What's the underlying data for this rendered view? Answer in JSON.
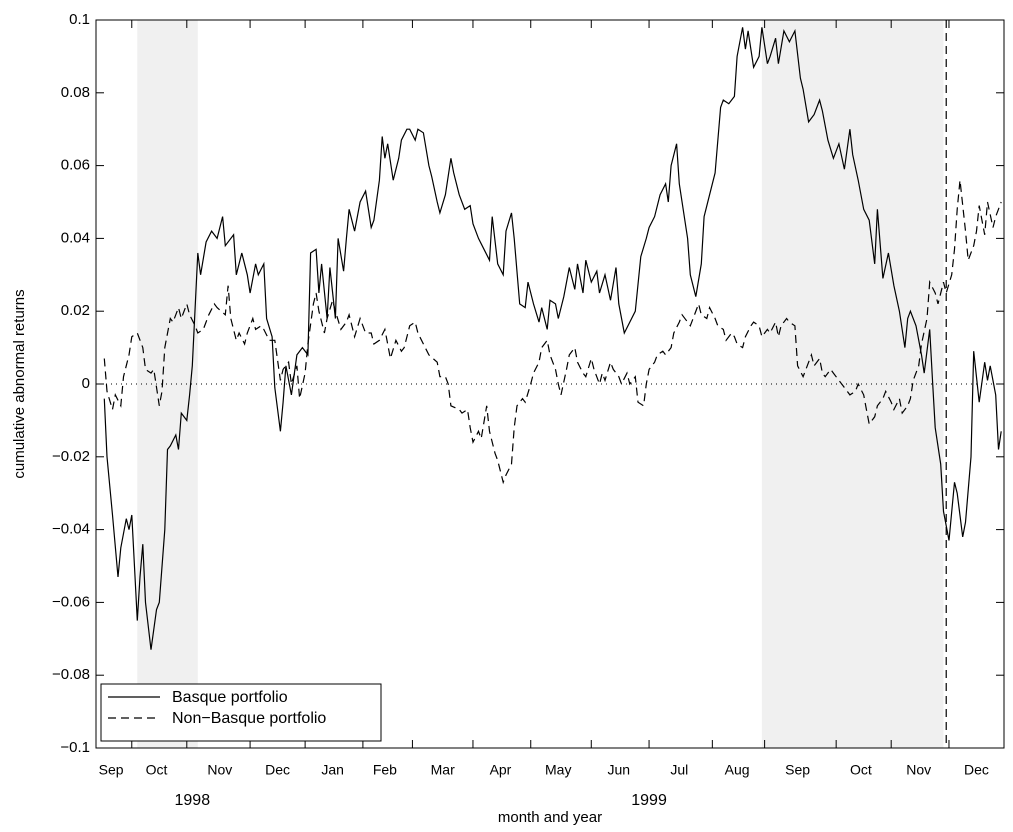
{
  "chart_data": {
    "type": "line",
    "xlabel": "month and year",
    "ylabel": "cumulative abnormal returns",
    "xlim": [
      0,
      330
    ],
    "ylim": [
      -0.1,
      0.1
    ],
    "yticks": [
      {
        "value": -0.1,
        "label": "−0.1"
      },
      {
        "value": -0.08,
        "label": "−0.08"
      },
      {
        "value": -0.06,
        "label": "−0.06"
      },
      {
        "value": -0.04,
        "label": "−0.04"
      },
      {
        "value": -0.02,
        "label": "−0.02"
      },
      0,
      0.02,
      0.04,
      0.06,
      0.08,
      0.1
    ],
    "xticks": [
      {
        "value": 5.5,
        "label": "Sep"
      },
      {
        "value": 22,
        "label": "Oct"
      },
      {
        "value": 45,
        "label": "Nov"
      },
      {
        "value": 66,
        "label": "Dec"
      },
      {
        "value": 86,
        "label": "Jan"
      },
      {
        "value": 105,
        "label": "Feb"
      },
      {
        "value": 126,
        "label": "Mar"
      },
      {
        "value": 147,
        "label": "Apr"
      },
      {
        "value": 168,
        "label": "May"
      },
      {
        "value": 190,
        "label": "Jun"
      },
      {
        "value": 212,
        "label": "Jul"
      },
      {
        "value": 233,
        "label": "Aug"
      },
      {
        "value": 255,
        "label": "Sep"
      },
      {
        "value": 278,
        "label": "Oct"
      },
      {
        "value": 299,
        "label": "Nov"
      },
      {
        "value": 320,
        "label": "Dec"
      }
    ],
    "month_boundaries": [
      13,
      33,
      56,
      76,
      97,
      115,
      137,
      158,
      180,
      201,
      224,
      243,
      269,
      289,
      310
    ],
    "year_labels": [
      {
        "text": "1998",
        "x": 35
      },
      {
        "text": "1999",
        "x": 201
      }
    ],
    "shaded_regions": [
      [
        15,
        37
      ],
      [
        242,
        308
      ]
    ],
    "shade_color": "#f0f0f0",
    "event_line": 309,
    "reference_line": 0,
    "legend": "lower left",
    "series": [
      {
        "name": "Basque portfolio",
        "color": "#000000",
        "style": "solid",
        "x": [
          3,
          4,
          6,
          8,
          9,
          11,
          12,
          13,
          15,
          16,
          17,
          18,
          20,
          22,
          23,
          25,
          26,
          27,
          29,
          30,
          31,
          33,
          34,
          35,
          37,
          38,
          40,
          42,
          44,
          46,
          47,
          50,
          51,
          53,
          55,
          56,
          58,
          59,
          61,
          62,
          64,
          65,
          67,
          68,
          69,
          71,
          73,
          75,
          77,
          78,
          80,
          81,
          82,
          84,
          85,
          87,
          88,
          90,
          91,
          92,
          94,
          96,
          98,
          100,
          101,
          103,
          104,
          105,
          106,
          108,
          110,
          111,
          113,
          114,
          116,
          117,
          119,
          121,
          122,
          124,
          125,
          127,
          129,
          130,
          132,
          134,
          136,
          137,
          139,
          141,
          143,
          144,
          146,
          148,
          149,
          151,
          152,
          154,
          156,
          157,
          159,
          161,
          162,
          164,
          165,
          167,
          168,
          170,
          172,
          174,
          175,
          177,
          178,
          180,
          182,
          183,
          185,
          187,
          189,
          190,
          192,
          194,
          196,
          198,
          200,
          201,
          203,
          205,
          207,
          208,
          209,
          211,
          212,
          215,
          216,
          218,
          220,
          221,
          223,
          225,
          227,
          228,
          230,
          232,
          233,
          235,
          236,
          237,
          239,
          241,
          242,
          244,
          245,
          247,
          248,
          250,
          252,
          254,
          256,
          257,
          259,
          261,
          263,
          264,
          266,
          268,
          270,
          272,
          274,
          275,
          277,
          279,
          281,
          283,
          284,
          286,
          288,
          290,
          292,
          294,
          295,
          296,
          298,
          300,
          301,
          303,
          304,
          305,
          307,
          308,
          310,
          312,
          313,
          315,
          316,
          318,
          319,
          321,
          323,
          324,
          325,
          327,
          328,
          329
        ],
        "values": [
          -0.004,
          -0.02,
          -0.036,
          -0.053,
          -0.045,
          -0.037,
          -0.04,
          -0.036,
          -0.065,
          -0.053,
          -0.044,
          -0.06,
          -0.073,
          -0.062,
          -0.06,
          -0.04,
          -0.018,
          -0.017,
          -0.014,
          -0.018,
          -0.008,
          -0.01,
          -0.003,
          0.005,
          0.036,
          0.03,
          0.039,
          0.042,
          0.04,
          0.046,
          0.038,
          0.041,
          0.03,
          0.036,
          0.03,
          0.025,
          0.033,
          0.03,
          0.033,
          0.018,
          0.013,
          -0.001,
          -0.013,
          -0.005,
          0.005,
          -0.003,
          0.008,
          0.01,
          0.008,
          0.036,
          0.037,
          0.025,
          0.033,
          0.018,
          0.032,
          0.018,
          0.04,
          0.031,
          0.04,
          0.048,
          0.042,
          0.05,
          0.053,
          0.043,
          0.045,
          0.056,
          0.068,
          0.062,
          0.066,
          0.056,
          0.062,
          0.067,
          0.07,
          0.07,
          0.067,
          0.07,
          0.069,
          0.06,
          0.057,
          0.05,
          0.047,
          0.052,
          0.062,
          0.058,
          0.052,
          0.048,
          0.049,
          0.044,
          0.04,
          0.037,
          0.034,
          0.046,
          0.033,
          0.03,
          0.042,
          0.047,
          0.04,
          0.022,
          0.021,
          0.028,
          0.022,
          0.017,
          0.021,
          0.015,
          0.023,
          0.022,
          0.018,
          0.024,
          0.032,
          0.026,
          0.033,
          0.025,
          0.034,
          0.028,
          0.031,
          0.025,
          0.03,
          0.023,
          0.032,
          0.022,
          0.014,
          0.017,
          0.02,
          0.035,
          0.04,
          0.043,
          0.046,
          0.052,
          0.055,
          0.05,
          0.06,
          0.066,
          0.055,
          0.04,
          0.03,
          0.024,
          0.033,
          0.046,
          0.052,
          0.058,
          0.076,
          0.078,
          0.077,
          0.079,
          0.09,
          0.098,
          0.092,
          0.097,
          0.087,
          0.09,
          0.098,
          0.088,
          0.09,
          0.095,
          0.088,
          0.097,
          0.094,
          0.097,
          0.084,
          0.081,
          0.072,
          0.074,
          0.078,
          0.075,
          0.067,
          0.062,
          0.066,
          0.059,
          0.07,
          0.063,
          0.056,
          0.048,
          0.045,
          0.033,
          0.048,
          0.029,
          0.036,
          0.027,
          0.02,
          0.01,
          0.018,
          0.02,
          0.016,
          0.008,
          0.003,
          0.015,
          0.001,
          -0.012,
          -0.022,
          -0.035,
          -0.043,
          -0.027,
          -0.03,
          -0.042,
          -0.038,
          -0.02,
          0.009,
          -0.005,
          0.006,
          0.001,
          0.005,
          -0.003,
          -0.018,
          -0.013
        ]
      },
      {
        "name": "Non−Basque portfolio",
        "color": "#000000",
        "style": "dashed",
        "x": [
          3,
          4,
          6,
          7,
          9,
          10,
          12,
          13,
          15,
          17,
          18,
          20,
          21,
          23,
          24,
          25,
          27,
          28,
          30,
          31,
          33,
          34,
          36,
          37,
          39,
          41,
          43,
          44,
          47,
          48,
          49,
          51,
          52,
          54,
          55,
          57,
          58,
          60,
          61,
          63,
          65,
          67,
          68,
          70,
          71,
          73,
          74,
          76,
          77,
          79,
          80,
          81,
          83,
          84,
          86,
          87,
          89,
          91,
          92,
          94,
          96,
          98,
          100,
          101,
          103,
          105,
          107,
          109,
          111,
          112,
          114,
          116,
          117,
          119,
          121,
          124,
          125,
          127,
          128,
          129,
          132,
          133,
          135,
          136,
          137,
          139,
          140,
          142,
          143,
          145,
          146,
          148,
          149,
          151,
          152,
          153,
          155,
          156,
          158,
          159,
          161,
          162,
          164,
          165,
          167,
          168,
          169,
          171,
          172,
          174,
          175,
          177,
          178,
          180,
          181,
          183,
          184,
          185,
          187,
          188,
          190,
          191,
          193,
          194,
          196,
          197,
          199,
          200,
          201,
          203,
          204,
          206,
          207,
          209,
          210,
          212,
          213,
          215,
          216,
          217,
          219,
          220,
          222,
          223,
          225,
          226,
          228,
          229,
          231,
          232,
          233,
          235,
          236,
          238,
          239,
          241,
          242,
          244,
          245,
          247,
          248,
          249,
          251,
          252,
          254,
          255,
          257,
          258,
          260,
          261,
          263,
          264,
          265,
          267,
          268,
          270,
          271,
          273,
          274,
          276,
          277,
          279,
          280,
          281,
          283,
          284,
          286,
          287,
          289,
          290,
          292,
          293,
          295,
          296,
          297,
          299,
          300,
          302,
          303,
          305,
          306,
          308,
          309,
          311,
          312,
          313,
          314,
          316,
          317,
          319,
          320,
          321,
          323,
          324,
          326,
          327,
          329
        ],
        "values": [
          0.007,
          -0.002,
          -0.007,
          -0.003,
          -0.006,
          0.002,
          0.008,
          0.013,
          0.014,
          0.01,
          0.004,
          0.003,
          0.004,
          -0.006,
          -0.002,
          0.01,
          0.018,
          0.017,
          0.021,
          0.018,
          0.022,
          0.019,
          0.016,
          0.014,
          0.015,
          0.019,
          0.022,
          0.021,
          0.019,
          0.027,
          0.018,
          0.012,
          0.014,
          0.011,
          0.014,
          0.018,
          0.015,
          0.016,
          0.015,
          0.012,
          0.012,
          0.001,
          0.004,
          0.006,
          0.0,
          0.005,
          -0.004,
          0.003,
          0.011,
          0.022,
          0.025,
          0.02,
          0.014,
          0.018,
          0.023,
          0.02,
          0.015,
          0.017,
          0.019,
          0.013,
          0.018,
          0.014,
          0.014,
          0.011,
          0.012,
          0.015,
          0.007,
          0.012,
          0.009,
          0.01,
          0.016,
          0.017,
          0.014,
          0.011,
          0.008,
          0.006,
          0.002,
          0.002,
          0.0,
          -0.006,
          -0.007,
          -0.008,
          -0.007,
          -0.012,
          -0.016,
          -0.013,
          -0.015,
          -0.006,
          -0.013,
          -0.019,
          -0.021,
          -0.027,
          -0.025,
          -0.022,
          -0.012,
          -0.006,
          -0.004,
          -0.005,
          0.0,
          0.003,
          0.006,
          0.01,
          0.012,
          0.008,
          0.004,
          0.0,
          -0.003,
          0.004,
          0.008,
          0.01,
          0.006,
          0.003,
          0.002,
          0.007,
          0.004,
          0.0,
          0.003,
          0.001,
          0.006,
          0.004,
          0.002,
          0.0,
          0.003,
          0.0,
          0.002,
          -0.005,
          -0.006,
          0.0,
          0.004,
          0.006,
          0.008,
          0.009,
          0.008,
          0.01,
          0.014,
          0.017,
          0.019,
          0.017,
          0.016,
          0.018,
          0.022,
          0.019,
          0.018,
          0.021,
          0.018,
          0.016,
          0.015,
          0.012,
          0.014,
          0.013,
          0.011,
          0.01,
          0.013,
          0.016,
          0.017,
          0.016,
          0.013,
          0.015,
          0.014,
          0.017,
          0.013,
          0.016,
          0.018,
          0.017,
          0.016,
          0.005,
          0.002,
          0.004,
          0.008,
          0.005,
          0.007,
          0.003,
          0.002,
          0.004,
          0.003,
          0.001,
          0.0,
          -0.002,
          -0.003,
          -0.002,
          0.0,
          -0.003,
          -0.007,
          -0.011,
          -0.009,
          -0.006,
          -0.004,
          -0.002,
          -0.005,
          -0.007,
          -0.004,
          -0.008,
          -0.006,
          -0.004,
          0.001,
          0.005,
          0.011,
          0.018,
          0.028,
          0.025,
          0.022,
          0.028,
          0.025,
          0.03,
          0.037,
          0.048,
          0.056,
          0.042,
          0.034,
          0.038,
          0.042,
          0.049,
          0.041,
          0.05,
          0.043,
          0.046,
          0.05
        ]
      }
    ]
  }
}
